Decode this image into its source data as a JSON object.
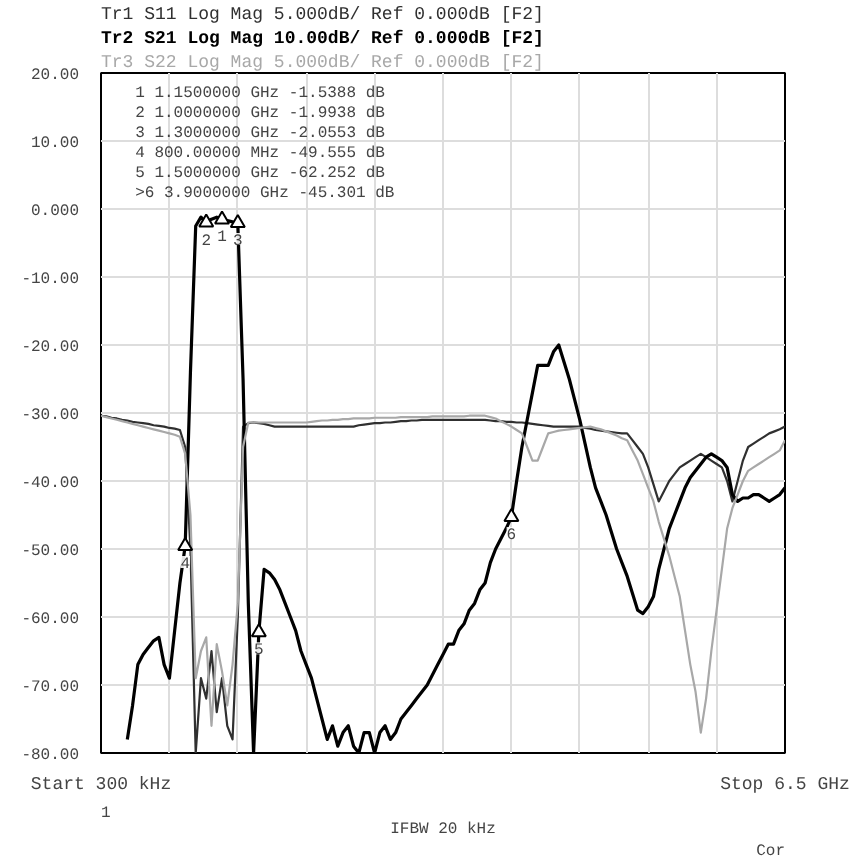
{
  "chart_data": {
    "type": "line",
    "categories": [
      "Start 300 kHz",
      null,
      null,
      null,
      null,
      null,
      null,
      null,
      null,
      null,
      null,
      null,
      null,
      null,
      null,
      null,
      null,
      null,
      null,
      null,
      null,
      null,
      null,
      null,
      null,
      null,
      null,
      null,
      null,
      null,
      null,
      null,
      null,
      null,
      null,
      null,
      null,
      null,
      null,
      null,
      null,
      null,
      null,
      null,
      null,
      null,
      null,
      null,
      null,
      null,
      null,
      null,
      null,
      null,
      null,
      null,
      null,
      null,
      null,
      null,
      null,
      null,
      null,
      null,
      null,
      null,
      null,
      null,
      null,
      null,
      null,
      null,
      null,
      null,
      null,
      null,
      null,
      null,
      null,
      null,
      null,
      null,
      null,
      null,
      null,
      null,
      null,
      null,
      null,
      null,
      null,
      null,
      null,
      null,
      null,
      null,
      null,
      null,
      null,
      null,
      null,
      null,
      null,
      null,
      null,
      null,
      null,
      null,
      null,
      null,
      null,
      null,
      null,
      null,
      null,
      null,
      null,
      null,
      null,
      null,
      null,
      null,
      null,
      null,
      null,
      null,
      null,
      null,
      null,
      null,
      "Stop 6.5 GHz"
    ],
    "series": [
      {
        "name": "Tr1 S11 Log Mag 5.000dB/ Ref 0.000dB [F2]",
        "color": "#303030",
        "values": [
          -30.4,
          -30.5,
          -30.7,
          -30.8,
          -31,
          -31.1,
          -31.3,
          -31.4,
          -31.5,
          -31.6,
          -31.8,
          -31.9,
          -32,
          -32.2,
          -32.3,
          -32.5,
          -35,
          -50,
          -80,
          -69,
          -72,
          -65,
          -74,
          -69,
          -76,
          -78,
          -60,
          -32,
          -31.5,
          -31.4,
          -31.5,
          -31.6,
          -31.8,
          -32,
          -32,
          -32,
          -32,
          -32,
          -32,
          -32,
          -32,
          -32,
          -32,
          -32,
          -32,
          -32,
          -32,
          -32,
          -32,
          -31.8,
          -31.7,
          -31.6,
          -31.5,
          -31.5,
          -31.4,
          -31.4,
          -31.3,
          -31.2,
          -31.2,
          -31.1,
          -31.1,
          -31,
          -31,
          -31,
          -31,
          -31,
          -31,
          -31,
          -31,
          -31,
          -31,
          -31,
          -31,
          -31,
          -31.1,
          -31.2,
          -31.2,
          -31.3,
          -31.3,
          -31.4,
          -31.4,
          -31.5,
          -31.6,
          -31.7,
          -31.8,
          -31.9,
          -32,
          -32,
          -32,
          -32,
          -32,
          -32,
          -32.2,
          -32.3,
          -32.5,
          -32.6,
          -32.7,
          -32.8,
          -32.9,
          -33,
          -33,
          -34,
          -35,
          -36,
          -38,
          -40.5,
          -43,
          -41.5,
          -40,
          -39,
          -38,
          -37.5,
          -37,
          -36.5,
          -36,
          -36.5,
          -37,
          -37.5,
          -38,
          -40,
          -43,
          -40,
          -37,
          -35,
          -34.5,
          -34,
          -33.5,
          -33,
          -32.7,
          -32.4,
          -32
        ]
      },
      {
        "name": "Tr2 S21 Log Mag 10.00dB/ Ref 0.000dB [F2]",
        "color": "#000000",
        "values": [
          null,
          null,
          null,
          null,
          null,
          -78,
          -73,
          -67,
          -65.5,
          -64.5,
          -63.5,
          -63,
          -67,
          -69,
          -62,
          -55,
          -49.555,
          -24,
          -2.5,
          -1.2,
          -1.9938,
          -1.5,
          -1.2,
          -1.5388,
          -1.7,
          -1.9,
          -2.0553,
          -25,
          -58,
          -80,
          -62.252,
          -53,
          -53.5,
          -54.5,
          -56,
          -58,
          -60,
          -62,
          -65,
          -67,
          -69,
          -72,
          -75,
          -78,
          -76,
          -79,
          -77,
          -76,
          -79,
          -80,
          -77,
          -77,
          -80,
          -77,
          -76,
          -78,
          -77,
          -75,
          -74,
          -73,
          -72,
          -71,
          -70,
          -68.5,
          -67,
          -65.5,
          -64,
          -64,
          -62,
          -61,
          -59,
          -58,
          -56,
          -55,
          -52,
          -50,
          -48.5,
          -47,
          -45.301,
          -40,
          -35,
          -31,
          -27,
          -23,
          -23,
          -23,
          -21,
          -20,
          -22.5,
          -25,
          -28,
          -31,
          -34.5,
          -38,
          -41,
          -43,
          -45,
          -47.5,
          -50,
          -52,
          -54,
          -56.5,
          -59,
          -59.5,
          -58.5,
          -57,
          -53,
          -50,
          -47,
          -45,
          -43,
          -41,
          -39.5,
          -38.5,
          -37.5,
          -36.5,
          -36,
          -36.5,
          -37,
          -38,
          -42,
          -43,
          -42.5,
          -42.5,
          -42,
          -42,
          -42.5,
          -43,
          -42.5,
          -42,
          -41
        ]
      },
      {
        "name": "Tr3 S22 Log Mag 5.000dB/ Ref 0.000dB [F2]",
        "color": "#a8a8a8",
        "values": [
          -30.4,
          -30.6,
          -30.8,
          -31,
          -31.2,
          -31.4,
          -31.6,
          -31.8,
          -32,
          -32.2,
          -32.4,
          -32.6,
          -32.8,
          -33,
          -33.2,
          -33.5,
          -36,
          -45,
          -69,
          -65,
          -63,
          -76,
          -64,
          -68,
          -73,
          -67,
          -58,
          -35,
          -31.4,
          -31.4,
          -31.4,
          -31.4,
          -31.4,
          -31.4,
          -31.4,
          -31.4,
          -31.4,
          -31.4,
          -31.4,
          -31.4,
          -31.3,
          -31.2,
          -31.1,
          -31.1,
          -31,
          -31,
          -30.9,
          -30.9,
          -30.8,
          -30.8,
          -30.8,
          -30.8,
          -30.7,
          -30.7,
          -30.7,
          -30.7,
          -30.7,
          -30.6,
          -30.6,
          -30.6,
          -30.6,
          -30.6,
          -30.6,
          -30.5,
          -30.5,
          -30.5,
          -30.5,
          -30.5,
          -30.5,
          -30.5,
          -30.4,
          -30.4,
          -30.4,
          -30.4,
          -30.6,
          -30.8,
          -31.2,
          -31.6,
          -32,
          -32.5,
          -33,
          -35,
          -37,
          -37,
          -35,
          -33,
          -32.8,
          -32.6,
          -32.5,
          -32.4,
          -32.3,
          -32.2,
          -32.1,
          -32,
          -32.2,
          -32.4,
          -32.7,
          -33,
          -33.3,
          -33.7,
          -34,
          -35.5,
          -37,
          -39,
          -41,
          -43,
          -46,
          -48.5,
          -51,
          -54,
          -57,
          -62,
          -67,
          -71,
          -77,
          -72,
          -65,
          -59,
          -53,
          -47,
          -44,
          -42,
          -40,
          -38.5,
          -38,
          -37.5,
          -37,
          -36.5,
          -36,
          -35.5,
          -34
        ]
      }
    ],
    "ylim": [
      -80,
      20
    ],
    "yticks": [
      {
        "value": 20,
        "label": "20.00"
      },
      {
        "value": 10,
        "label": "10.00"
      },
      {
        "value": 0,
        "label": "0.000"
      },
      {
        "value": -10,
        "label": "-10.00"
      },
      {
        "value": -20,
        "label": "-20.00"
      },
      {
        "value": -30,
        "label": "-30.00"
      },
      {
        "value": -40,
        "label": "-40.00"
      },
      {
        "value": -50,
        "label": "-50.00"
      },
      {
        "value": -60,
        "label": "-60.00"
      },
      {
        "value": -70,
        "label": "-70.00"
      },
      {
        "value": -80,
        "label": "-80.00"
      }
    ],
    "grid": true,
    "legend": "top",
    "line_style": "solid",
    "annotations": [
      "1  1.1500000 GHz  -1.5388 dB",
      "2  1.0000000 GHz  -1.9938 dB",
      "3  1.3000000 GHz  -2.0553 dB",
      "4  800.00000 MHz  -49.555 dB",
      "5  1.5000000 GHz  -62.252 dB",
      ">6  3.9000000 GHz  -45.301 dB",
      {
        "text": "1",
        "y": -1.5388
      },
      {
        "text": "2",
        "y": -1.9938
      },
      {
        "text": "3",
        "y": -2.0553
      },
      {
        "text": "4",
        "y": -49.555
      },
      {
        "text": "5",
        "y": -62.252
      },
      {
        "text": "6",
        "y": -45.301
      },
      "1",
      "IFBW 20 kHz",
      "Cor"
    ]
  }
}
